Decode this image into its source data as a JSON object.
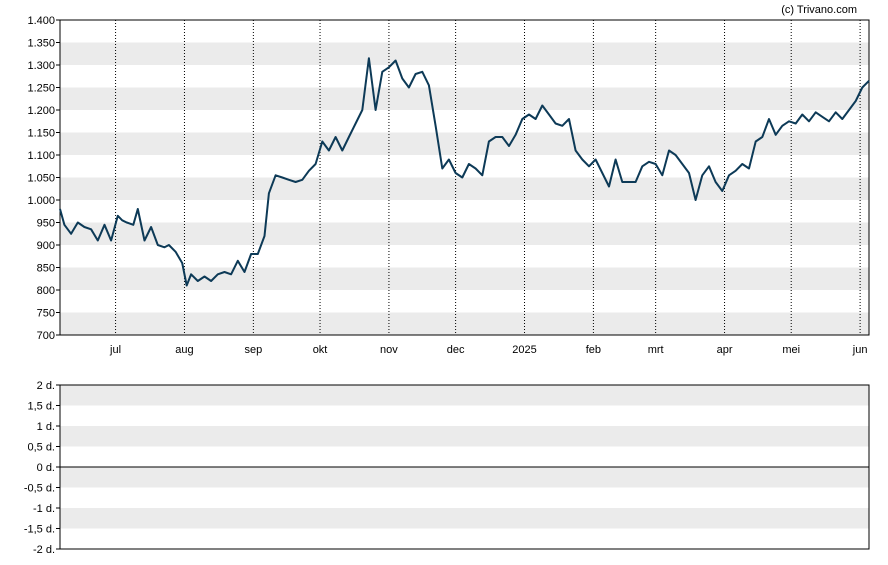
{
  "credit": "(c) Trivano.com",
  "colors": {
    "line": "#0d3a57",
    "band": "#ebebeb",
    "axis": "#000000",
    "grid": "#000000"
  },
  "chart_data": [
    {
      "type": "line",
      "ylim": [
        700,
        1400
      ],
      "yticks": [
        700,
        750,
        800,
        850,
        900,
        950,
        1000,
        1050,
        1100,
        1150,
        1200,
        1250,
        1300,
        1350,
        1400
      ],
      "ytick_labels": [
        "700",
        "750",
        "800",
        "850",
        "900",
        "950",
        "1.000",
        "1.050",
        "1.100",
        "1.150",
        "1.200",
        "1.250",
        "1.300",
        "1.350",
        "1.400"
      ],
      "xlim": [
        "2024-06-06",
        "2025-06-05"
      ],
      "xticks": [
        "2024-07-01",
        "2024-08-01",
        "2024-09-01",
        "2024-10-01",
        "2024-11-01",
        "2024-12-01",
        "2025-01-01",
        "2025-02-01",
        "2025-03-01",
        "2025-04-01",
        "2025-05-01",
        "2025-06-01"
      ],
      "xtick_labels": [
        "jul",
        "aug",
        "sep",
        "okt",
        "nov",
        "dec",
        "2025",
        "feb",
        "mrt",
        "apr",
        "mei",
        "jun"
      ],
      "grid_x": "dotted",
      "series": [
        {
          "x": [
            "2024-06-06",
            "2024-06-08",
            "2024-06-11",
            "2024-06-14",
            "2024-06-17",
            "2024-06-20",
            "2024-06-23",
            "2024-06-26",
            "2024-06-29",
            "2024-07-02",
            "2024-07-04",
            "2024-07-06",
            "2024-07-09",
            "2024-07-11",
            "2024-07-14",
            "2024-07-17",
            "2024-07-20",
            "2024-07-23",
            "2024-07-25",
            "2024-07-28",
            "2024-07-31",
            "2024-08-02",
            "2024-08-04",
            "2024-08-07",
            "2024-08-10",
            "2024-08-13",
            "2024-08-16",
            "2024-08-19",
            "2024-08-22",
            "2024-08-25",
            "2024-08-28",
            "2024-08-31",
            "2024-09-03",
            "2024-09-06",
            "2024-09-08",
            "2024-09-11",
            "2024-09-14",
            "2024-09-17",
            "2024-09-20",
            "2024-09-23",
            "2024-09-26",
            "2024-09-29",
            "2024-10-02",
            "2024-10-05",
            "2024-10-08",
            "2024-10-11",
            "2024-10-14",
            "2024-10-17",
            "2024-10-20",
            "2024-10-23",
            "2024-10-26",
            "2024-10-29",
            "2024-11-01",
            "2024-11-04",
            "2024-11-07",
            "2024-11-10",
            "2024-11-13",
            "2024-11-16",
            "2024-11-19",
            "2024-11-22",
            "2024-11-25",
            "2024-11-28",
            "2024-12-01",
            "2024-12-04",
            "2024-12-07",
            "2024-12-10",
            "2024-12-13",
            "2024-12-16",
            "2024-12-19",
            "2024-12-22",
            "2024-12-25",
            "2024-12-28",
            "2024-12-31",
            "2025-01-03",
            "2025-01-06",
            "2025-01-09",
            "2025-01-12",
            "2025-01-15",
            "2025-01-18",
            "2025-01-21",
            "2025-01-24",
            "2025-01-27",
            "2025-01-30",
            "2025-02-02",
            "2025-02-05",
            "2025-02-08",
            "2025-02-11",
            "2025-02-14",
            "2025-02-17",
            "2025-02-20",
            "2025-02-23",
            "2025-02-26",
            "2025-03-01",
            "2025-03-04",
            "2025-03-07",
            "2025-03-10",
            "2025-03-13",
            "2025-03-16",
            "2025-03-19",
            "2025-03-22",
            "2025-03-25",
            "2025-03-28",
            "2025-03-31",
            "2025-04-03",
            "2025-04-06",
            "2025-04-09",
            "2025-04-12",
            "2025-04-15",
            "2025-04-18",
            "2025-04-21",
            "2025-04-24",
            "2025-04-27",
            "2025-04-30",
            "2025-05-03",
            "2025-05-06",
            "2025-05-09",
            "2025-05-12",
            "2025-05-15",
            "2025-05-18",
            "2025-05-21",
            "2025-05-24",
            "2025-05-27",
            "2025-05-30",
            "2025-06-02",
            "2025-06-05"
          ],
          "y": [
            980,
            945,
            925,
            950,
            940,
            935,
            910,
            945,
            910,
            965,
            955,
            950,
            945,
            980,
            910,
            940,
            900,
            895,
            900,
            885,
            860,
            810,
            835,
            820,
            830,
            820,
            835,
            840,
            835,
            865,
            840,
            880,
            880,
            920,
            1015,
            1055,
            1050,
            1045,
            1040,
            1045,
            1065,
            1080,
            1130,
            1110,
            1140,
            1110,
            1140,
            1170,
            1200,
            1315,
            1200,
            1285,
            1295,
            1310,
            1270,
            1250,
            1280,
            1285,
            1255,
            1165,
            1070,
            1090,
            1060,
            1050,
            1080,
            1070,
            1055,
            1130,
            1140,
            1140,
            1120,
            1145,
            1180,
            1190,
            1180,
            1210,
            1190,
            1170,
            1165,
            1180,
            1110,
            1090,
            1075,
            1090,
            1060,
            1030,
            1090,
            1040,
            1040,
            1040,
            1075,
            1085,
            1080,
            1055,
            1110,
            1100,
            1080,
            1060,
            1000,
            1055,
            1075,
            1040,
            1020,
            1055,
            1065,
            1080,
            1070,
            1130,
            1140,
            1180,
            1145,
            1165,
            1175,
            1170,
            1190,
            1175,
            1195,
            1185,
            1175,
            1195,
            1180,
            1200,
            1220,
            1250,
            1265
          ]
        }
      ]
    },
    {
      "type": "line",
      "ylim": [
        -2,
        2
      ],
      "yticks": [
        -2,
        -1.5,
        -1,
        -0.5,
        0,
        0.5,
        1,
        1.5,
        2
      ],
      "ytick_labels": [
        "-2 d.",
        "-1,5 d.",
        "-1 d.",
        "-0,5 d.",
        "0 d.",
        "0,5 d.",
        "1 d.",
        "1,5 d.",
        "2 d."
      ],
      "series": []
    }
  ]
}
